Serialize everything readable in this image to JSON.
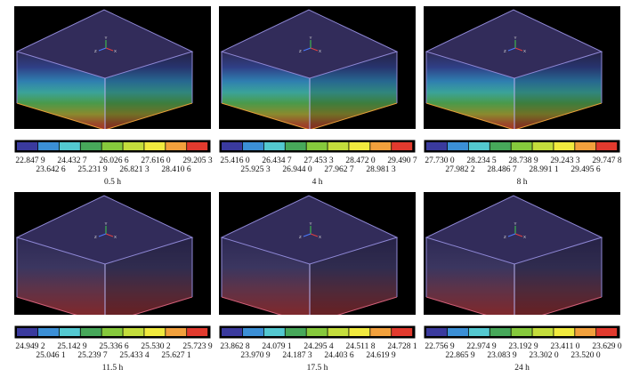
{
  "panels": [
    {
      "time": "0.5 h",
      "bands": 1.0,
      "labels_top": [
        "22.847 9",
        "24.432 7",
        "26.026 6",
        "27.616 0",
        "29.205 3"
      ],
      "labels_bottom": [
        "23.642 6",
        "25.231 9",
        "26.821 3",
        "28.410 6"
      ]
    },
    {
      "time": "4 h",
      "bands": 1.0,
      "labels_top": [
        "25.416 0",
        "26.434 7",
        "27.453 3",
        "28.472 0",
        "29.490 7"
      ],
      "labels_bottom": [
        "25.925 3",
        "26.944 0",
        "27.962 7",
        "28.981 3"
      ]
    },
    {
      "time": "8 h",
      "bands": 1.0,
      "labels_top": [
        "27.730 0",
        "28.234 5",
        "28.738 9",
        "29.243 3",
        "29.747 8"
      ],
      "labels_bottom": [
        "27.982 2",
        "28.486 7",
        "28.991 1",
        "29.495 6"
      ]
    },
    {
      "time": "11.5 h",
      "bands": 0.0,
      "labels_top": [
        "24.949 2",
        "25.142 9",
        "25.336 6",
        "25.530 2",
        "25.723 9"
      ],
      "labels_bottom": [
        "25.046 1",
        "25.239 7",
        "25.433 4",
        "25.627 1"
      ]
    },
    {
      "time": "17.5 h",
      "bands": 0.0,
      "labels_top": [
        "23.862 8",
        "24.079 1",
        "24.295 4",
        "24.511 8",
        "24.728 1"
      ],
      "labels_bottom": [
        "23.970 9",
        "24.187 3",
        "24.403 6",
        "24.619 9"
      ]
    },
    {
      "time": "24 h",
      "bands": 0.0,
      "labels_top": [
        "22.756 9",
        "22.974 9",
        "23.192 9",
        "23.411 0",
        "23.629 0"
      ],
      "labels_bottom": [
        "22.865 9",
        "23.083 9",
        "23.302 0",
        "23.520 0"
      ]
    }
  ],
  "axis_triad": {
    "x": "X",
    "y": "Y",
    "z": "Z"
  },
  "colors": {
    "colormap": [
      "#3a3a9e",
      "#3b8fd6",
      "#53c8d0",
      "#47a85a",
      "#86c93c",
      "#c4dd3c",
      "#f1ea3e",
      "#f2a03c",
      "#e23a2e"
    ],
    "top_face": "#322c5a",
    "edge": "#8f88d6"
  }
}
